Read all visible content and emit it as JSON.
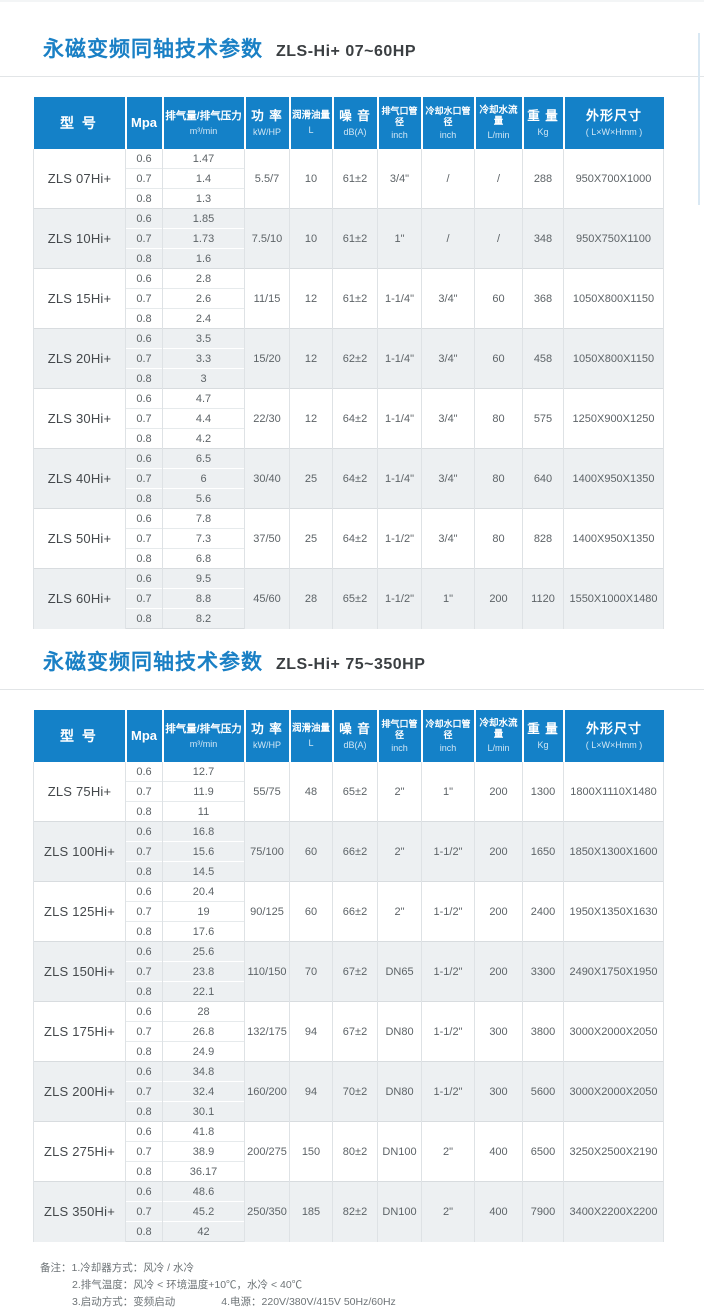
{
  "colors": {
    "header_blue": "#1481c8",
    "title_blue": "#1a80c5",
    "alt_row_bg": "#edf0f2",
    "border_gray": "#d8dcdf"
  },
  "sections": [
    {
      "title_zh": "永磁变频同轴技术参数",
      "title_model": "ZLS-Hi+ 07~60HP",
      "table": {
        "headers": [
          {
            "main": "型  号",
            "sub": ""
          },
          {
            "main": "Mpa",
            "sub": ""
          },
          {
            "main": "排气量/排气压力",
            "sub": "m³/min"
          },
          {
            "main": "功 率",
            "sub": "kW/HP"
          },
          {
            "main": "润滑油量",
            "sub": "L"
          },
          {
            "main": "噪 音",
            "sub": "dB(A)"
          },
          {
            "main": "排气口管径",
            "sub": "inch"
          },
          {
            "main": "冷却水口管径",
            "sub": "inch"
          },
          {
            "main": "冷却水流量",
            "sub": "L/min"
          },
          {
            "main": "重 量",
            "sub": "Kg"
          },
          {
            "main": "外形尺寸",
            "sub": "( L×W×Hmm )"
          }
        ],
        "rows": [
          {
            "model": "ZLS 07Hi+",
            "sub_rows": [
              [
                "0.6",
                "1.47"
              ],
              [
                "0.7",
                "1.4"
              ],
              [
                "0.8",
                "1.3"
              ]
            ],
            "merged": [
              "5.5/7",
              "10",
              "61±2",
              "3/4\"",
              "/",
              "/",
              "288",
              "950X700X1000"
            ]
          },
          {
            "model": "ZLS 10Hi+",
            "sub_rows": [
              [
                "0.6",
                "1.85"
              ],
              [
                "0.7",
                "1.73"
              ],
              [
                "0.8",
                "1.6"
              ]
            ],
            "merged": [
              "7.5/10",
              "10",
              "61±2",
              "1\"",
              "/",
              "/",
              "348",
              "950X750X1100"
            ]
          },
          {
            "model": "ZLS 15Hi+",
            "sub_rows": [
              [
                "0.6",
                "2.8"
              ],
              [
                "0.7",
                "2.6"
              ],
              [
                "0.8",
                "2.4"
              ]
            ],
            "merged": [
              "11/15",
              "12",
              "61±2",
              "1-1/4\"",
              "3/4\"",
              "60",
              "368",
              "1050X800X1150"
            ]
          },
          {
            "model": "ZLS 20Hi+",
            "sub_rows": [
              [
                "0.6",
                "3.5"
              ],
              [
                "0.7",
                "3.3"
              ],
              [
                "0.8",
                "3"
              ]
            ],
            "merged": [
              "15/20",
              "12",
              "62±2",
              "1-1/4\"",
              "3/4\"",
              "60",
              "458",
              "1050X800X1150"
            ]
          },
          {
            "model": "ZLS 30Hi+",
            "sub_rows": [
              [
                "0.6",
                "4.7"
              ],
              [
                "0.7",
                "4.4"
              ],
              [
                "0.8",
                "4.2"
              ]
            ],
            "merged": [
              "22/30",
              "12",
              "64±2",
              "1-1/4\"",
              "3/4\"",
              "80",
              "575",
              "1250X900X1250"
            ]
          },
          {
            "model": "ZLS 40Hi+",
            "sub_rows": [
              [
                "0.6",
                "6.5"
              ],
              [
                "0.7",
                "6"
              ],
              [
                "0.8",
                "5.6"
              ]
            ],
            "merged": [
              "30/40",
              "25",
              "64±2",
              "1-1/4\"",
              "3/4\"",
              "80",
              "640",
              "1400X950X1350"
            ]
          },
          {
            "model": "ZLS 50Hi+",
            "sub_rows": [
              [
                "0.6",
                "7.8"
              ],
              [
                "0.7",
                "7.3"
              ],
              [
                "0.8",
                "6.8"
              ]
            ],
            "merged": [
              "37/50",
              "25",
              "64±2",
              "1-1/2\"",
              "3/4\"",
              "80",
              "828",
              "1400X950X1350"
            ]
          },
          {
            "model": "ZLS 60Hi+",
            "sub_rows": [
              [
                "0.6",
                "9.5"
              ],
              [
                "0.7",
                "8.8"
              ],
              [
                "0.8",
                "8.2"
              ]
            ],
            "merged": [
              "45/60",
              "28",
              "65±2",
              "1-1/2\"",
              "1\"",
              "200",
              "1120",
              "1550X1000X1480"
            ]
          }
        ]
      }
    },
    {
      "title_zh": "永磁变频同轴技术参数",
      "title_model": "ZLS-Hi+ 75~350HP",
      "table": {
        "headers": [
          {
            "main": "型  号",
            "sub": ""
          },
          {
            "main": "Mpa",
            "sub": ""
          },
          {
            "main": "排气量/排气压力",
            "sub": "m³/min"
          },
          {
            "main": "功 率",
            "sub": "kW/HP"
          },
          {
            "main": "润滑油量",
            "sub": "L"
          },
          {
            "main": "噪 音",
            "sub": "dB(A)"
          },
          {
            "main": "排气口管径",
            "sub": "inch"
          },
          {
            "main": "冷却水口管径",
            "sub": "inch"
          },
          {
            "main": "冷却水流量",
            "sub": "L/min"
          },
          {
            "main": "重 量",
            "sub": "Kg"
          },
          {
            "main": "外形尺寸",
            "sub": "( L×W×Hmm )"
          }
        ],
        "rows": [
          {
            "model": "ZLS 75Hi+",
            "sub_rows": [
              [
                "0.6",
                "12.7"
              ],
              [
                "0.7",
                "11.9"
              ],
              [
                "0.8",
                "11"
              ]
            ],
            "merged": [
              "55/75",
              "48",
              "65±2",
              "2\"",
              "1\"",
              "200",
              "1300",
              "1800X1110X1480"
            ]
          },
          {
            "model": "ZLS 100Hi+",
            "sub_rows": [
              [
                "0.6",
                "16.8"
              ],
              [
                "0.7",
                "15.6"
              ],
              [
                "0.8",
                "14.5"
              ]
            ],
            "merged": [
              "75/100",
              "60",
              "66±2",
              "2\"",
              "1-1/2\"",
              "200",
              "1650",
              "1850X1300X1600"
            ]
          },
          {
            "model": "ZLS 125Hi+",
            "sub_rows": [
              [
                "0.6",
                "20.4"
              ],
              [
                "0.7",
                "19"
              ],
              [
                "0.8",
                "17.6"
              ]
            ],
            "merged": [
              "90/125",
              "60",
              "66±2",
              "2\"",
              "1-1/2\"",
              "200",
              "2400",
              "1950X1350X1630"
            ]
          },
          {
            "model": "ZLS 150Hi+",
            "sub_rows": [
              [
                "0.6",
                "25.6"
              ],
              [
                "0.7",
                "23.8"
              ],
              [
                "0.8",
                "22.1"
              ]
            ],
            "merged": [
              "110/150",
              "70",
              "67±2",
              "DN65",
              "1-1/2\"",
              "200",
              "3300",
              "2490X1750X1950"
            ]
          },
          {
            "model": "ZLS 175Hi+",
            "sub_rows": [
              [
                "0.6",
                "28"
              ],
              [
                "0.7",
                "26.8"
              ],
              [
                "0.8",
                "24.9"
              ]
            ],
            "merged": [
              "132/175",
              "94",
              "67±2",
              "DN80",
              "1-1/2\"",
              "300",
              "3800",
              "3000X2000X2050"
            ]
          },
          {
            "model": "ZLS 200Hi+",
            "sub_rows": [
              [
                "0.6",
                "34.8"
              ],
              [
                "0.7",
                "32.4"
              ],
              [
                "0.8",
                "30.1"
              ]
            ],
            "merged": [
              "160/200",
              "94",
              "70±2",
              "DN80",
              "1-1/2\"",
              "300",
              "5600",
              "3000X2000X2050"
            ]
          },
          {
            "model": "ZLS 275Hi+",
            "sub_rows": [
              [
                "0.6",
                "41.8"
              ],
              [
                "0.7",
                "38.9"
              ],
              [
                "0.8",
                "36.17"
              ]
            ],
            "merged": [
              "200/275",
              "150",
              "80±2",
              "DN100",
              "2\"",
              "400",
              "6500",
              "3250X2500X2190"
            ]
          },
          {
            "model": "ZLS 350Hi+",
            "sub_rows": [
              [
                "0.6",
                "48.6"
              ],
              [
                "0.7",
                "45.2"
              ],
              [
                "0.8",
                "42"
              ]
            ],
            "merged": [
              "250/350",
              "185",
              "82±2",
              "DN100",
              "2\"",
              "400",
              "7900",
              "3400X2200X2200"
            ]
          }
        ]
      }
    }
  ],
  "notes": {
    "label": "备注：",
    "line1": "1.冷却器方式：风冷 / 水冷",
    "line2": "2.排气温度：风冷 < 环境温度+10℃，水冷 < 40℃",
    "line3a": "3.启动方式：变频启动",
    "line3b": "4.电源：220V/380V/415V  50Hz/60Hz"
  }
}
